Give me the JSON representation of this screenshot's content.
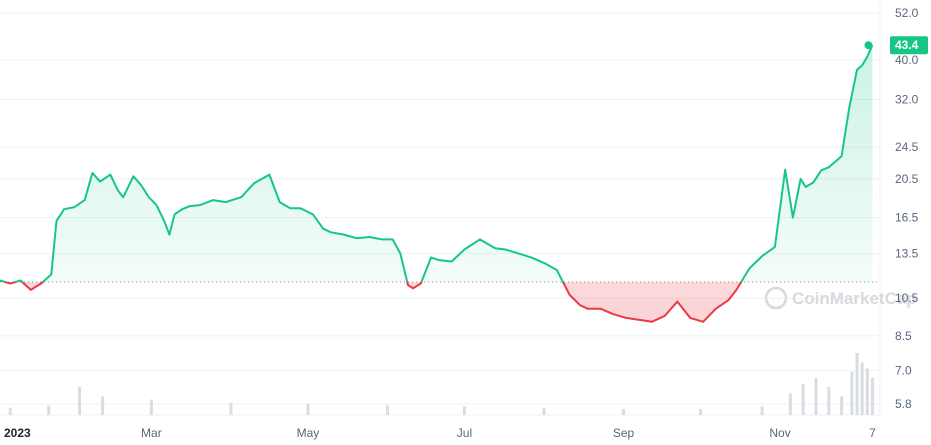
{
  "chart_data": {
    "type": "line",
    "y_scale": "log",
    "y_ticks": [
      5.8,
      7.0,
      8.5,
      10.5,
      13.5,
      16.5,
      20.5,
      24.5,
      32.0,
      40.0,
      52.0
    ],
    "y_tick_labels": [
      "5.8",
      "7.0",
      "8.5",
      "10.5",
      "13.5",
      "16.5",
      "20.5",
      "24.5",
      "32.0",
      "40.0",
      "52.0"
    ],
    "ylim": [
      5.4,
      54
    ],
    "x_tick_labels": [
      "2023",
      "Mar",
      "May",
      "Jul",
      "Sep",
      "Nov",
      "7"
    ],
    "x_tick_dates": [
      "2023-01-01",
      "2023-03-01",
      "2023-05-01",
      "2023-07-01",
      "2023-09-01",
      "2023-11-01",
      "2023-12-07"
    ],
    "xlim": [
      "2023-01-01",
      "2023-12-08"
    ],
    "baseline": 11.5,
    "last_value_label": "43.4",
    "watermark": "CoinMarketCap",
    "grid": true,
    "colors": {
      "up": "#16c784",
      "down": "#ea3943",
      "baseline": "#808a9d",
      "grid": "#eff2f5",
      "volume": "#d9dde3"
    },
    "series": [
      {
        "x": [
          "2023-01-01",
          "2023-01-05",
          "2023-01-09",
          "2023-01-13",
          "2023-01-17",
          "2023-01-21",
          "2023-01-23",
          "2023-01-26",
          "2023-01-30",
          "2023-02-03",
          "2023-02-06",
          "2023-02-09",
          "2023-02-13",
          "2023-02-16",
          "2023-02-18",
          "2023-02-22",
          "2023-02-25",
          "2023-02-28",
          "2023-03-03",
          "2023-03-06",
          "2023-03-08",
          "2023-03-10",
          "2023-03-13",
          "2023-03-16",
          "2023-03-20",
          "2023-03-25",
          "2023-03-30",
          "2023-04-05",
          "2023-04-10",
          "2023-04-16",
          "2023-04-20",
          "2023-04-24",
          "2023-04-28",
          "2023-05-03",
          "2023-05-07",
          "2023-05-10",
          "2023-05-15",
          "2023-05-20",
          "2023-05-25",
          "2023-05-30",
          "2023-06-03",
          "2023-06-06",
          "2023-06-09",
          "2023-06-11",
          "2023-06-14",
          "2023-06-18",
          "2023-06-21",
          "2023-06-26",
          "2023-07-01",
          "2023-07-07",
          "2023-07-13",
          "2023-07-17",
          "2023-07-22",
          "2023-07-27",
          "2023-08-01",
          "2023-08-06",
          "2023-08-11",
          "2023-08-15",
          "2023-08-18",
          "2023-08-23",
          "2023-08-28",
          "2023-09-02",
          "2023-09-07",
          "2023-09-12",
          "2023-09-17",
          "2023-09-22",
          "2023-09-27",
          "2023-10-02",
          "2023-10-07",
          "2023-10-12",
          "2023-10-15",
          "2023-10-20",
          "2023-10-25",
          "2023-10-30",
          "2023-11-03",
          "2023-11-06",
          "2023-11-09",
          "2023-11-11",
          "2023-11-14",
          "2023-11-17",
          "2023-11-20",
          "2023-11-25",
          "2023-11-28",
          "2023-12-01",
          "2023-12-03",
          "2023-12-05",
          "2023-12-07"
        ],
        "values": [
          11.6,
          11.4,
          11.6,
          11.0,
          11.4,
          12.0,
          16.2,
          17.3,
          17.5,
          18.2,
          21.2,
          20.2,
          21.0,
          19.2,
          18.5,
          20.8,
          19.8,
          18.5,
          17.7,
          16.2,
          15.0,
          16.8,
          17.3,
          17.6,
          17.7,
          18.2,
          18.0,
          18.5,
          20.0,
          21.0,
          18.0,
          17.4,
          17.4,
          16.8,
          15.5,
          15.2,
          15.0,
          14.7,
          14.8,
          14.6,
          14.6,
          13.5,
          11.3,
          11.1,
          11.4,
          13.2,
          13.0,
          12.9,
          13.8,
          14.6,
          13.9,
          13.8,
          13.5,
          13.2,
          12.8,
          12.3,
          10.7,
          10.1,
          9.9,
          9.9,
          9.6,
          9.4,
          9.3,
          9.2,
          9.5,
          10.3,
          9.4,
          9.2,
          9.9,
          10.4,
          11.0,
          12.4,
          13.3,
          14.0,
          21.6,
          16.5,
          20.5,
          19.6,
          20.1,
          21.5,
          21.9,
          23.3,
          30.6,
          37.8,
          38.8,
          40.7,
          43.4
        ]
      }
    ],
    "volume": {
      "x": [
        "2023-01-05",
        "2023-01-20",
        "2023-02-01",
        "2023-02-10",
        "2023-03-01",
        "2023-04-01",
        "2023-05-01",
        "2023-06-01",
        "2023-07-01",
        "2023-08-01",
        "2023-09-01",
        "2023-10-01",
        "2023-10-25",
        "2023-11-05",
        "2023-11-10",
        "2023-11-15",
        "2023-11-20",
        "2023-11-25",
        "2023-11-29",
        "2023-12-01",
        "2023-12-03",
        "2023-12-05",
        "2023-12-07"
      ],
      "values": [
        0.12,
        0.15,
        0.45,
        0.3,
        0.25,
        0.2,
        0.18,
        0.15,
        0.14,
        0.12,
        0.1,
        0.1,
        0.14,
        0.35,
        0.5,
        0.6,
        0.45,
        0.3,
        0.7,
        1.0,
        0.85,
        0.75,
        0.6
      ]
    }
  }
}
